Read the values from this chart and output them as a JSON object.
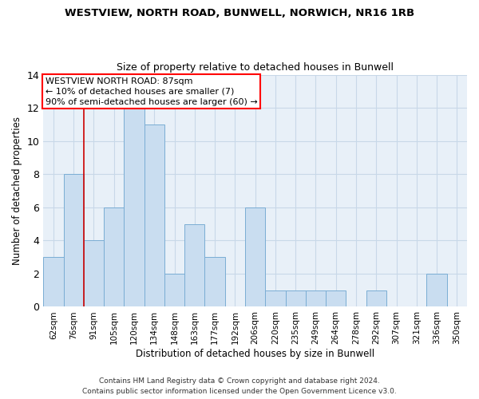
{
  "title1": "WESTVIEW, NORTH ROAD, BUNWELL, NORWICH, NR16 1RB",
  "title2": "Size of property relative to detached houses in Bunwell",
  "xlabel": "Distribution of detached houses by size in Bunwell",
  "ylabel": "Number of detached properties",
  "categories": [
    "62sqm",
    "76sqm",
    "91sqm",
    "105sqm",
    "120sqm",
    "134sqm",
    "148sqm",
    "163sqm",
    "177sqm",
    "192sqm",
    "206sqm",
    "220sqm",
    "235sqm",
    "249sqm",
    "264sqm",
    "278sqm",
    "292sqm",
    "307sqm",
    "321sqm",
    "336sqm",
    "350sqm"
  ],
  "values": [
    3,
    8,
    4,
    6,
    12,
    11,
    2,
    5,
    3,
    0,
    6,
    1,
    1,
    1,
    1,
    0,
    1,
    0,
    0,
    2,
    0
  ],
  "bar_color": "#c9ddf0",
  "bar_edge_color": "#7aadd4",
  "annotation_line1": "WESTVIEW NORTH ROAD: 87sqm",
  "annotation_line2": "← 10% of detached houses are smaller (7)",
  "annotation_line3": "90% of semi-detached houses are larger (60) →",
  "vline_x": 1.5,
  "vline_color": "#cc0000",
  "ylim": [
    0,
    14
  ],
  "yticks": [
    0,
    2,
    4,
    6,
    8,
    10,
    12,
    14
  ],
  "grid_color": "#c8d8e8",
  "background_color": "#e8f0f8",
  "footer1": "Contains HM Land Registry data © Crown copyright and database right 2024.",
  "footer2": "Contains public sector information licensed under the Open Government Licence v3.0."
}
